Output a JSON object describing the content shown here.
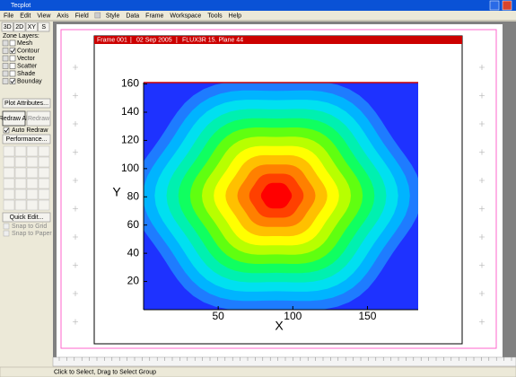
{
  "window": {
    "title": "Tecplot",
    "status": "Click to Select, Drag to Select Group"
  },
  "menu": [
    "File",
    "Edit",
    "View",
    "Axis",
    "Field",
    "Style",
    "Data",
    "Frame",
    "Workspace",
    "Tools",
    "Help"
  ],
  "sidebar": {
    "modes": [
      "3D",
      "2D",
      "XY",
      "S"
    ],
    "zone_layers_label": "Zone Layers:",
    "layers": [
      {
        "label": "Mesh",
        "checked": false
      },
      {
        "label": "Contour",
        "checked": true
      },
      {
        "label": "Vector",
        "checked": false
      },
      {
        "label": "Scatter",
        "checked": false
      },
      {
        "label": "Shade",
        "checked": false
      },
      {
        "label": "Bounday",
        "checked": true
      }
    ],
    "plot_attributes": "Plot Attributes...",
    "redraw_all": "Redraw All",
    "redraw": "Redraw",
    "auto_redraw": "Auto Redraw",
    "performance": "Performance...",
    "quick_edit": "Quick Edit...",
    "snap_grid": "Snap to Grid",
    "snap_paper": "Snap to Paper"
  },
  "frame": {
    "name": "Frame 001",
    "date": "02 Sep 2005",
    "dataset": "FLUX3R 15. Plane 44"
  },
  "plot": {
    "xlabel": "X",
    "ylabel": "Y",
    "xlim": [
      0,
      184
    ],
    "ylim": [
      0,
      161
    ],
    "xticks": [
      50,
      100,
      150
    ],
    "yticks": [
      20,
      40,
      60,
      80,
      100,
      120,
      140,
      160
    ]
  }
}
